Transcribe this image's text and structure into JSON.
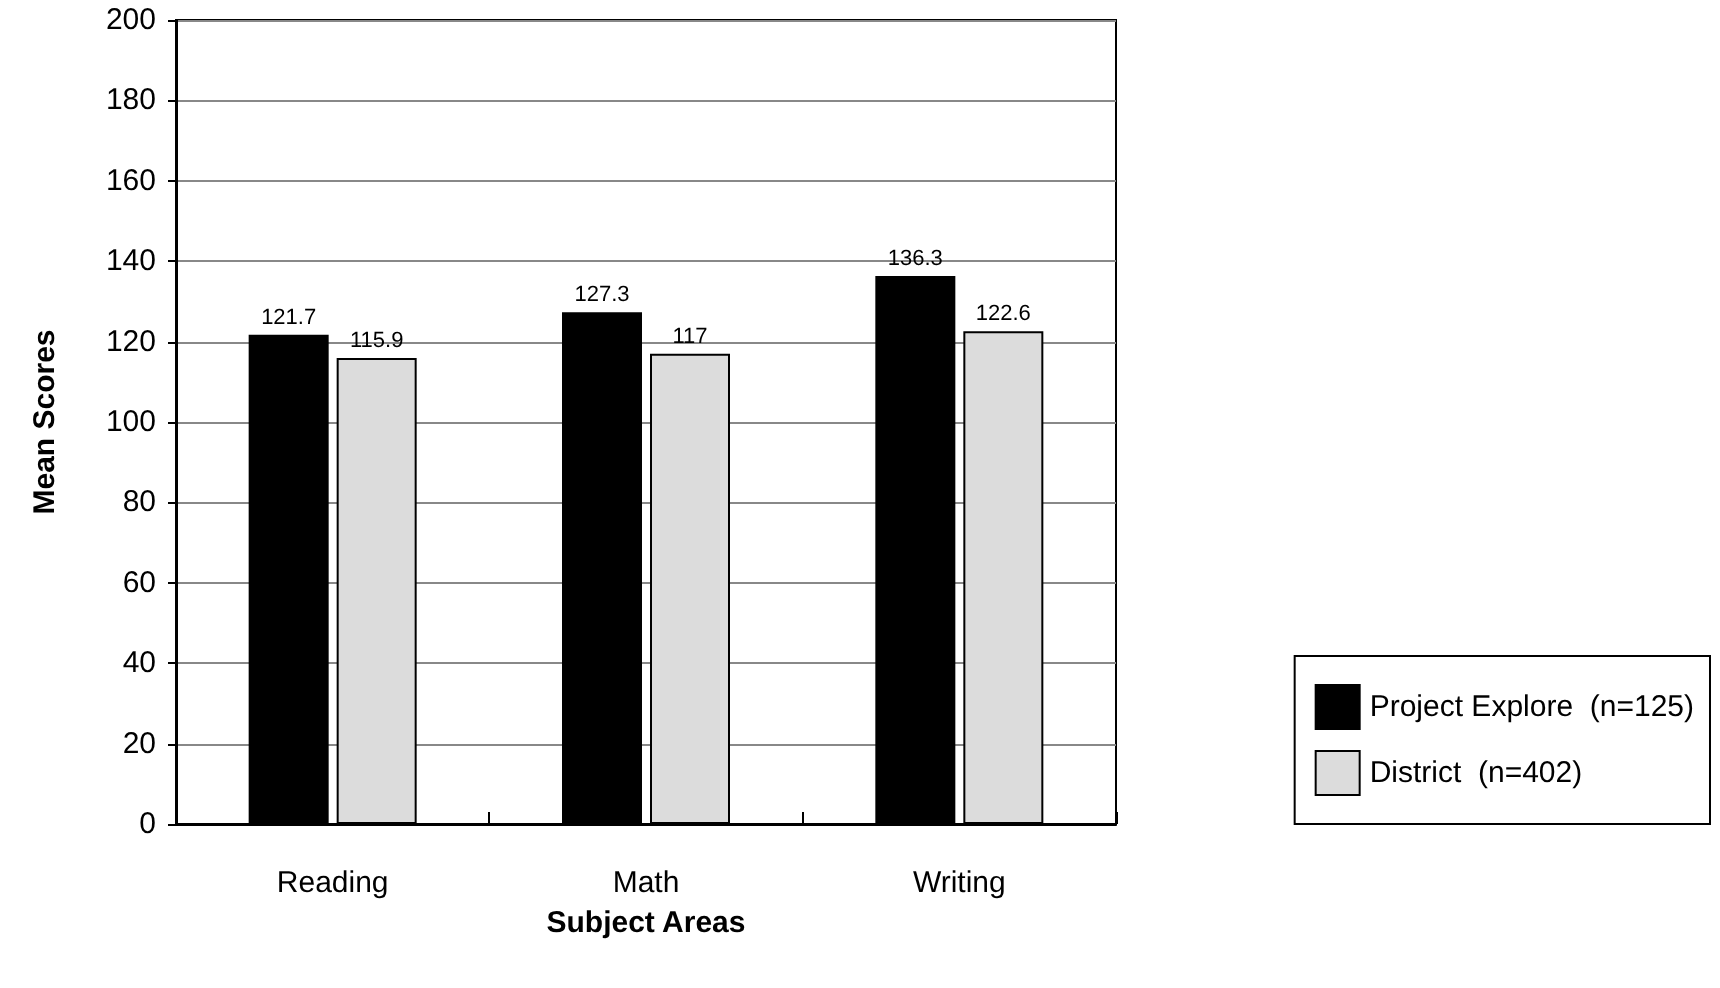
{
  "chart_data": {
    "type": "bar",
    "xlabel": "Subject Areas",
    "ylabel": "Mean Scores",
    "categories": [
      "Reading",
      "Math",
      "Writing"
    ],
    "series": [
      {
        "name": "Project Explore  (n=125)",
        "color": "#000000",
        "values": [
          121.7,
          127.3,
          136.3
        ]
      },
      {
        "name": "District  (n=402)",
        "color": "#dcdcdc",
        "values": [
          115.9,
          117,
          122.6
        ]
      }
    ],
    "ylim": [
      0,
      200
    ],
    "yticks": [
      0,
      20,
      40,
      60,
      80,
      100,
      120,
      140,
      160,
      180,
      200
    ],
    "grid": "y",
    "legend": "bottom right",
    "data_labels": true
  }
}
